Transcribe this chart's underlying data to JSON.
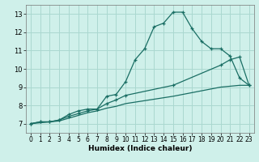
{
  "title": "",
  "xlabel": "Humidex (Indice chaleur)",
  "ylabel": "",
  "bg_color": "#cff0ea",
  "grid_color": "#aad8d0",
  "line_color": "#1a6e64",
  "xlim": [
    -0.5,
    23.5
  ],
  "ylim": [
    6.5,
    13.5
  ],
  "xticks": [
    0,
    1,
    2,
    3,
    4,
    5,
    6,
    7,
    8,
    9,
    10,
    11,
    12,
    13,
    14,
    15,
    16,
    17,
    18,
    19,
    20,
    21,
    22,
    23
  ],
  "yticks": [
    7,
    8,
    9,
    10,
    11,
    12,
    13
  ],
  "series1_x": [
    0,
    1,
    2,
    3,
    4,
    5,
    6,
    7,
    8,
    9,
    10,
    11,
    12,
    13,
    14,
    15,
    16,
    17,
    18,
    19,
    20,
    21,
    22,
    23
  ],
  "series1_y": [
    7.0,
    7.1,
    7.1,
    7.2,
    7.5,
    7.7,
    7.8,
    7.8,
    8.5,
    8.6,
    9.3,
    10.5,
    11.1,
    12.3,
    12.5,
    13.1,
    13.1,
    12.2,
    11.5,
    11.1,
    11.1,
    10.7,
    9.5,
    9.1
  ],
  "series2_x": [
    0,
    1,
    2,
    3,
    4,
    5,
    6,
    7,
    8,
    9,
    10,
    15,
    20,
    21,
    22,
    23
  ],
  "series2_y": [
    7.0,
    7.1,
    7.1,
    7.2,
    7.4,
    7.55,
    7.7,
    7.8,
    8.1,
    8.3,
    8.55,
    9.1,
    10.2,
    10.5,
    10.65,
    9.1
  ],
  "series3_x": [
    0,
    1,
    2,
    3,
    4,
    5,
    6,
    7,
    8,
    9,
    10,
    15,
    20,
    21,
    22,
    23
  ],
  "series3_y": [
    7.0,
    7.05,
    7.1,
    7.15,
    7.3,
    7.45,
    7.6,
    7.7,
    7.85,
    7.95,
    8.1,
    8.5,
    9.0,
    9.05,
    9.1,
    9.1
  ],
  "xlabel_fontsize": 6.5,
  "xlabel_fontweight": "bold",
  "tick_fontsize": 5.5,
  "ytick_fontsize": 6.0,
  "marker_size": 3.5,
  "line_width": 0.9
}
